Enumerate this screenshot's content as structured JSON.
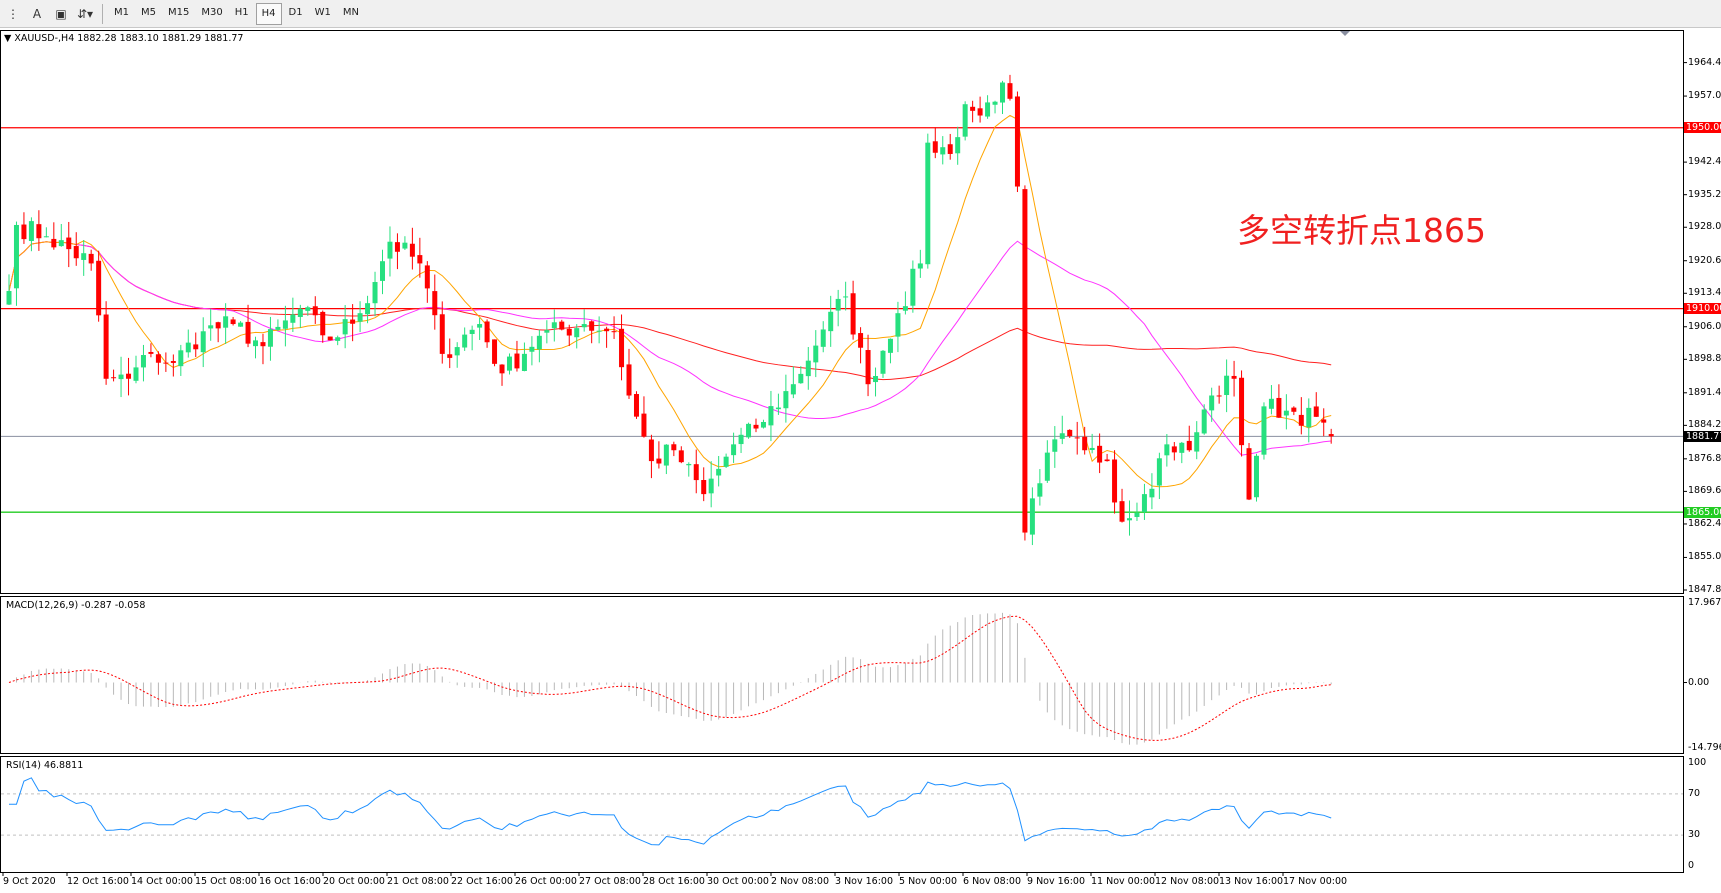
{
  "toolbar": {
    "icons": [
      "grid-f-icon",
      "text-a-icon",
      "text-label-icon",
      "arrows-icon"
    ],
    "timeframes": [
      "M1",
      "M5",
      "M15",
      "M30",
      "H1",
      "H4",
      "D1",
      "W1",
      "MN"
    ],
    "active_timeframe": "H4"
  },
  "chart_data": {
    "type": "candlestick",
    "title": "XAUUSD-,H4  1882.28 1883.10 1881.29 1881.77",
    "symbol": "XAUUSD-,H4",
    "ohlc_last": {
      "open": 1882.28,
      "high": 1883.1,
      "low": 1881.29,
      "close": 1881.77
    },
    "close_path": [
      [
        0,
        1913.9
      ],
      [
        1,
        1928.5
      ],
      [
        5,
        1926
      ],
      [
        11,
        1920
      ],
      [
        13,
        1894.5
      ],
      [
        16,
        1894.5
      ],
      [
        19,
        1900
      ],
      [
        22,
        1898
      ],
      [
        26,
        1905
      ],
      [
        30,
        1906.6
      ],
      [
        34,
        1901.7
      ],
      [
        39,
        1910
      ],
      [
        43,
        1903
      ],
      [
        47,
        1909
      ],
      [
        51,
        1924.8
      ],
      [
        55,
        1920
      ],
      [
        58,
        1900
      ],
      [
        63,
        1906.6
      ],
      [
        66,
        1895.7
      ],
      [
        71,
        1904
      ],
      [
        77,
        1906.6
      ],
      [
        81,
        1905
      ],
      [
        83,
        1890.8
      ],
      [
        86,
        1876.3
      ],
      [
        89,
        1878.7
      ],
      [
        93,
        1869
      ],
      [
        97,
        1880
      ],
      [
        100,
        1883.5
      ],
      [
        105,
        1893.3
      ],
      [
        109,
        1905.4
      ],
      [
        112,
        1912.7
      ],
      [
        115,
        1893.3
      ],
      [
        119,
        1909
      ],
      [
        122,
        1920
      ],
      [
        123,
        1946.7
      ],
      [
        126,
        1944.2
      ],
      [
        128,
        1955.2
      ],
      [
        130,
        1952.7
      ],
      [
        133,
        1960
      ],
      [
        134,
        1956.4
      ],
      [
        135,
        1937
      ],
      [
        136,
        1860.5
      ],
      [
        138,
        1871.4
      ],
      [
        140,
        1881.1
      ],
      [
        144,
        1878.7
      ],
      [
        147,
        1876.3
      ],
      [
        149,
        1862.9
      ],
      [
        152,
        1869
      ],
      [
        155,
        1880
      ],
      [
        158,
        1878.7
      ],
      [
        161,
        1890.8
      ],
      [
        164,
        1894.5
      ],
      [
        166,
        1867.8
      ],
      [
        168,
        1888.4
      ],
      [
        172,
        1887.2
      ],
      [
        176,
        1884.8
      ],
      [
        177,
        1881.77
      ]
    ],
    "price_axis_ticks": [
      "1964.40",
      "1957.00",
      "1942.40",
      "1935.20",
      "1928.00",
      "1920.60",
      "1913.40",
      "1906.00",
      "1898.80",
      "1891.40",
      "1884.20",
      "1876.80",
      "1869.60",
      "1862.40",
      "1855.00",
      "1847.80"
    ],
    "ylim": [
      1847.8,
      1964.4
    ],
    "horizontal_lines": [
      {
        "price": 1950.0,
        "label": "1950.00",
        "color": "#ff0000"
      },
      {
        "price": 1910.0,
        "label": "1910.00",
        "color": "#ff0000"
      },
      {
        "price": 1865.0,
        "label": "1865.00",
        "color": "#22cc22"
      }
    ],
    "bid_line": {
      "price": 1881.77,
      "label": "1881.77",
      "color": "#000000"
    },
    "annotation": "多空转折点1865",
    "colors": {
      "bull": "#26e07f",
      "bear": "#ff0000",
      "ma_fast": "#ffa500",
      "ma_mid": "#ff33ff",
      "ma_slow": "#ff2020"
    },
    "time_labels": [
      "9 Oct 2020",
      "12 Oct 16:00",
      "14 Oct 00:00",
      "15 Oct 08:00",
      "16 Oct 16:00",
      "20 Oct 00:00",
      "21 Oct 08:00",
      "22 Oct 16:00",
      "26 Oct 00:00",
      "27 Oct 08:00",
      "28 Oct 16:00",
      "30 Oct 00:00",
      "2 Nov 08:00",
      "3 Nov 16:00",
      "5 Nov 00:00",
      "6 Nov 08:00",
      "9 Nov 16:00",
      "11 Nov 00:00",
      "12 Nov 08:00",
      "13 Nov 16:00",
      "17 Nov 00:00"
    ]
  },
  "macd": {
    "label": "MACD(12,26,9) -0.287 -0.058",
    "max": "17.967",
    "zero": "0.00",
    "min": "-14.796",
    "ylim": [
      -14.796,
      17.967
    ]
  },
  "rsi": {
    "label": "RSI(14) 46.8811",
    "ticks": [
      "100",
      "70",
      "30",
      "0"
    ],
    "levels": [
      70,
      30
    ],
    "color": "#1e90ff"
  }
}
